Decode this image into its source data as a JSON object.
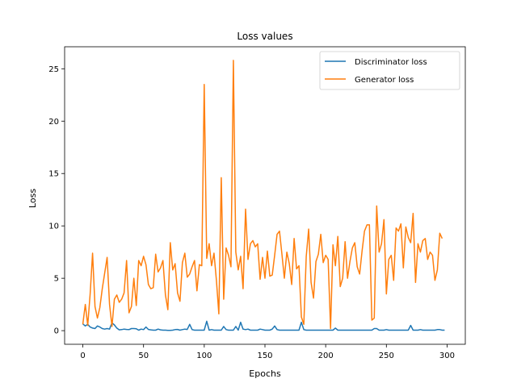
{
  "chart_data": {
    "type": "line",
    "title": "Loss values",
    "xlabel": "Epochs",
    "ylabel": "Loss",
    "xlim": [
      -15,
      315
    ],
    "ylim": [
      -1.3,
      27.1
    ],
    "xticks": [
      0,
      50,
      100,
      150,
      200,
      250,
      300
    ],
    "yticks": [
      0,
      5,
      10,
      15,
      20,
      25
    ],
    "grid": false,
    "legend_position": "top-right",
    "x_step": 2,
    "series": [
      {
        "name": "Discriminator loss",
        "color": "#1f77b4",
        "values": [
          0.65,
          0.45,
          0.6,
          0.35,
          0.25,
          0.2,
          0.45,
          0.35,
          0.2,
          0.15,
          0.2,
          0.15,
          0.75,
          0.55,
          0.25,
          0.08,
          0.1,
          0.15,
          0.12,
          0.1,
          0.2,
          0.2,
          0.18,
          0.05,
          0.15,
          0.1,
          0.35,
          0.12,
          0.08,
          0.05,
          0.05,
          0.15,
          0.08,
          0.05,
          0.05,
          0.03,
          0.03,
          0.05,
          0.1,
          0.12,
          0.05,
          0.1,
          0.15,
          0.12,
          0.6,
          0.1,
          0.05,
          0.05,
          0.05,
          0.05,
          0.05,
          0.9,
          0.05,
          0.1,
          0.05,
          0.05,
          0.05,
          0.05,
          0.4,
          0.1,
          0.05,
          0.05,
          0.05,
          0.4,
          0.05,
          0.8,
          0.15,
          0.1,
          0.15,
          0.05,
          0.05,
          0.05,
          0.05,
          0.15,
          0.1,
          0.05,
          0.05,
          0.05,
          0.15,
          0.45,
          0.1,
          0.05,
          0.05,
          0.05,
          0.05,
          0.05,
          0.05,
          0.05,
          0.05,
          0.05,
          0.8,
          0.1,
          0.05,
          0.05,
          0.05,
          0.05,
          0.05,
          0.05,
          0.05,
          0.05,
          0.05,
          0.05,
          0.05,
          0.05,
          0.25,
          0.05,
          0.05,
          0.05,
          0.05,
          0.05,
          0.05,
          0.05,
          0.05,
          0.05,
          0.05,
          0.05,
          0.05,
          0.05,
          0.05,
          0.05,
          0.2,
          0.2,
          0.05,
          0.05,
          0.05,
          0.1,
          0.05,
          0.05,
          0.05,
          0.05,
          0.05,
          0.05,
          0.05,
          0.05,
          0.05,
          0.5,
          0.05,
          0.05,
          0.05,
          0.1,
          0.05,
          0.05,
          0.05,
          0.05,
          0.05,
          0.05,
          0.1,
          0.1,
          0.05,
          0.05
        ]
      },
      {
        "name": "Generator loss",
        "color": "#ff7f0e",
        "values": [
          0.6,
          2.5,
          0.5,
          3.5,
          7.4,
          2.3,
          1.2,
          2.2,
          4.0,
          5.5,
          7.0,
          2.5,
          0.4,
          3.0,
          3.4,
          2.7,
          3.0,
          3.6,
          6.7,
          1.7,
          2.3,
          5.0,
          2.4,
          6.7,
          6.2,
          7.1,
          6.3,
          4.4,
          4.0,
          4.1,
          7.3,
          5.6,
          6.0,
          6.7,
          3.4,
          2.0,
          8.4,
          5.8,
          6.4,
          3.6,
          2.8,
          6.5,
          7.4,
          5.1,
          5.4,
          6.1,
          6.7,
          3.8,
          6.3,
          6.2,
          23.5,
          6.9,
          8.3,
          6.2,
          7.4,
          4.8,
          1.6,
          14.6,
          3.0,
          7.9,
          7.2,
          6.1,
          25.8,
          7.5,
          5.8,
          7.1,
          4.0,
          11.6,
          6.8,
          8.3,
          8.6,
          8.0,
          8.3,
          4.9,
          7.0,
          5.0,
          7.6,
          5.2,
          5.3,
          7.2,
          9.2,
          9.5,
          7.3,
          5.0,
          7.5,
          6.4,
          4.4,
          8.8,
          5.9,
          6.2,
          1.3,
          0.6,
          7.1,
          9.7,
          4.6,
          3.1,
          6.6,
          7.3,
          9.2,
          6.5,
          7.2,
          6.8,
          0.2,
          8.2,
          6.2,
          9.0,
          4.2,
          5.0,
          8.5,
          5.0,
          6.6,
          7.9,
          8.4,
          6.1,
          5.4,
          7.6,
          9.5,
          10.1,
          10.1,
          1.0,
          1.2,
          11.9,
          7.5,
          8.3,
          10.6,
          3.5,
          6.8,
          7.2,
          4.8,
          9.8,
          9.5,
          10.2,
          6.0,
          9.9,
          8.9,
          8.4,
          11.2,
          4.6,
          8.3,
          7.5,
          8.6,
          8.8,
          6.8,
          7.5,
          7.2,
          4.8,
          5.8,
          9.3,
          8.8
        ]
      }
    ]
  }
}
